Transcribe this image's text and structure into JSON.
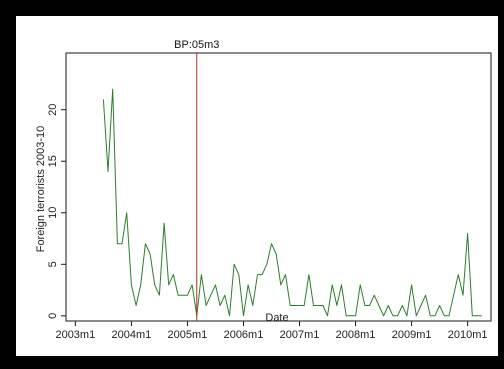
{
  "chart_data": {
    "type": "line",
    "title": "",
    "xlabel": "Date",
    "ylabel": "Foreign terrorists 2003-10",
    "x_ticks": [
      {
        "label": "2003m1",
        "value": 0
      },
      {
        "label": "2004m1",
        "value": 12
      },
      {
        "label": "2005m1",
        "value": 24
      },
      {
        "label": "2006m1",
        "value": 36
      },
      {
        "label": "2007m1",
        "value": 48
      },
      {
        "label": "2008m1",
        "value": 60
      },
      {
        "label": "2009m1",
        "value": 72
      },
      {
        "label": "2010m1",
        "value": 84
      }
    ],
    "y_ticks": [
      0,
      5,
      10,
      15,
      20
    ],
    "xlim": [
      -2,
      89
    ],
    "ylim": [
      -0.5,
      25.5
    ],
    "grid": false,
    "series": [
      {
        "color": "#2e7d2e",
        "x": [
          6,
          7,
          8,
          9,
          10,
          11,
          12,
          13,
          14,
          15,
          16,
          17,
          18,
          19,
          20,
          21,
          22,
          23,
          24,
          25,
          26,
          27,
          28,
          29,
          30,
          31,
          32,
          33,
          34,
          35,
          36,
          37,
          38,
          39,
          40,
          41,
          42,
          43,
          44,
          45,
          46,
          47,
          48,
          49,
          50,
          51,
          52,
          53,
          54,
          55,
          56,
          57,
          58,
          59,
          60,
          61,
          62,
          63,
          64,
          65,
          66,
          67,
          68,
          69,
          70,
          71,
          72,
          73,
          74,
          75,
          76,
          77,
          78,
          79,
          80,
          81,
          82,
          83,
          84,
          85,
          86,
          87
        ],
        "y": [
          21,
          14,
          22,
          7,
          7,
          10,
          3,
          1,
          3,
          7,
          6,
          3,
          2,
          9,
          3,
          4,
          2,
          2,
          2,
          3,
          0,
          4,
          1,
          2,
          3,
          1,
          2,
          0,
          5,
          4,
          0,
          3,
          1,
          4,
          4,
          5,
          7,
          6,
          3,
          4,
          1,
          1,
          1,
          1,
          4,
          1,
          1,
          1,
          0,
          3,
          1,
          3,
          0,
          0,
          0,
          3,
          1,
          1,
          2,
          1,
          0,
          1,
          0,
          0,
          1,
          0,
          3,
          0,
          1,
          2,
          0,
          0,
          1,
          0,
          0,
          2,
          4,
          2,
          8,
          0,
          0,
          0
        ]
      }
    ],
    "annotations": [
      {
        "label": "BP:05m3",
        "x": 26,
        "color": "#b03020"
      }
    ]
  }
}
